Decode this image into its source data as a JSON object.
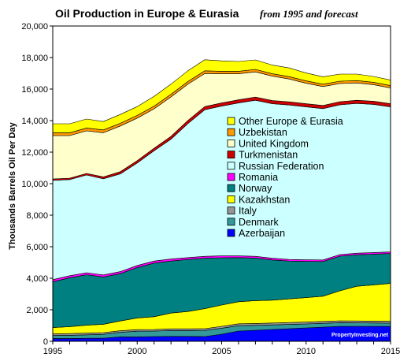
{
  "chart_data": {
    "type": "area",
    "title": "Oil Production in Europe & Eurasia",
    "subtitle": "from 1995 and forecast",
    "xlabel": "",
    "ylabel": "Thousands Barrels Oil Per Day",
    "xlim": [
      1995,
      2015
    ],
    "ylim": [
      0,
      20000
    ],
    "x_ticks": [
      "1995",
      "2000",
      "2005",
      "2010",
      "2015"
    ],
    "y_ticks": [
      "0",
      "2,000",
      "4,000",
      "6,000",
      "8,000",
      "10,000",
      "12,000",
      "14,000",
      "16,000",
      "18,000",
      "20,000"
    ],
    "x": [
      1995,
      1996,
      1997,
      1998,
      1999,
      2000,
      2001,
      2002,
      2003,
      2004,
      2005,
      2006,
      2007,
      2008,
      2009,
      2010,
      2011,
      2012,
      2013,
      2014,
      2015
    ],
    "stacked": true,
    "legend_position": "center-right",
    "grid": false,
    "watermark": "PropertyInvesting.net",
    "series": [
      {
        "name": "Azerbaijan",
        "color": "#0000ff",
        "values": [
          180,
          180,
          190,
          200,
          280,
          280,
          300,
          310,
          310,
          300,
          450,
          650,
          700,
          750,
          800,
          850,
          900,
          950,
          950,
          950,
          950
        ]
      },
      {
        "name": "Denmark",
        "color": "#339999",
        "values": [
          190,
          200,
          220,
          240,
          290,
          360,
          350,
          370,
          370,
          390,
          380,
          340,
          310,
          290,
          270,
          250,
          240,
          230,
          220,
          210,
          200
        ]
      },
      {
        "name": "Italy",
        "color": "#969696",
        "values": [
          100,
          110,
          110,
          110,
          100,
          100,
          100,
          110,
          110,
          110,
          120,
          120,
          120,
          120,
          120,
          120,
          120,
          120,
          120,
          120,
          120
        ]
      },
      {
        "name": "Kazakhstan",
        "color": "#ffff00",
        "values": [
          400,
          440,
          500,
          530,
          620,
          740,
          810,
          1000,
          1100,
          1270,
          1350,
          1400,
          1450,
          1450,
          1500,
          1550,
          1600,
          1900,
          2200,
          2300,
          2400
        ]
      },
      {
        "name": "Norway",
        "color": "#008080",
        "values": [
          2900,
          3100,
          3200,
          3000,
          3000,
          3200,
          3400,
          3300,
          3300,
          3200,
          3000,
          2800,
          2700,
          2550,
          2400,
          2300,
          2200,
          2200,
          2000,
          1950,
          1900
        ]
      },
      {
        "name": "Romania",
        "color": "#ff00ff",
        "values": [
          140,
          130,
          130,
          130,
          130,
          130,
          130,
          130,
          120,
          120,
          120,
          110,
          110,
          110,
          100,
          100,
          100,
          100,
          100,
          100,
          100
        ]
      },
      {
        "name": "Russian Federation",
        "color": "#ccffff",
        "values": [
          6300,
          6100,
          6200,
          6100,
          6200,
          6500,
          7000,
          7600,
          8500,
          9300,
          9500,
          9700,
          9900,
          9800,
          9800,
          9700,
          9600,
          9500,
          9500,
          9400,
          9200
        ]
      },
      {
        "name": "Turkmenistan",
        "color": "#cc0000",
        "values": [
          90,
          90,
          100,
          120,
          140,
          150,
          160,
          180,
          200,
          200,
          200,
          200,
          200,
          200,
          200,
          200,
          200,
          200,
          200,
          200,
          200
        ]
      },
      {
        "name": "United Kingdom",
        "color": "#ffffcc",
        "values": [
          2750,
          2700,
          2700,
          2800,
          2900,
          2700,
          2500,
          2500,
          2300,
          2100,
          1850,
          1650,
          1600,
          1550,
          1450,
          1300,
          1200,
          1150,
          1100,
          1050,
          1000
        ]
      },
      {
        "name": "Uzbekistan",
        "color": "#ff9900",
        "values": [
          180,
          180,
          180,
          180,
          170,
          170,
          170,
          170,
          170,
          170,
          160,
          160,
          160,
          150,
          150,
          150,
          150,
          150,
          150,
          150,
          150
        ]
      },
      {
        "name": "Other Europe & Eurasia",
        "color": "#ffff00",
        "values": [
          570,
          570,
          570,
          530,
          560,
          560,
          620,
          640,
          680,
          700,
          660,
          620,
          600,
          550,
          550,
          500,
          470,
          450,
          410,
          370,
          350
        ]
      }
    ]
  }
}
